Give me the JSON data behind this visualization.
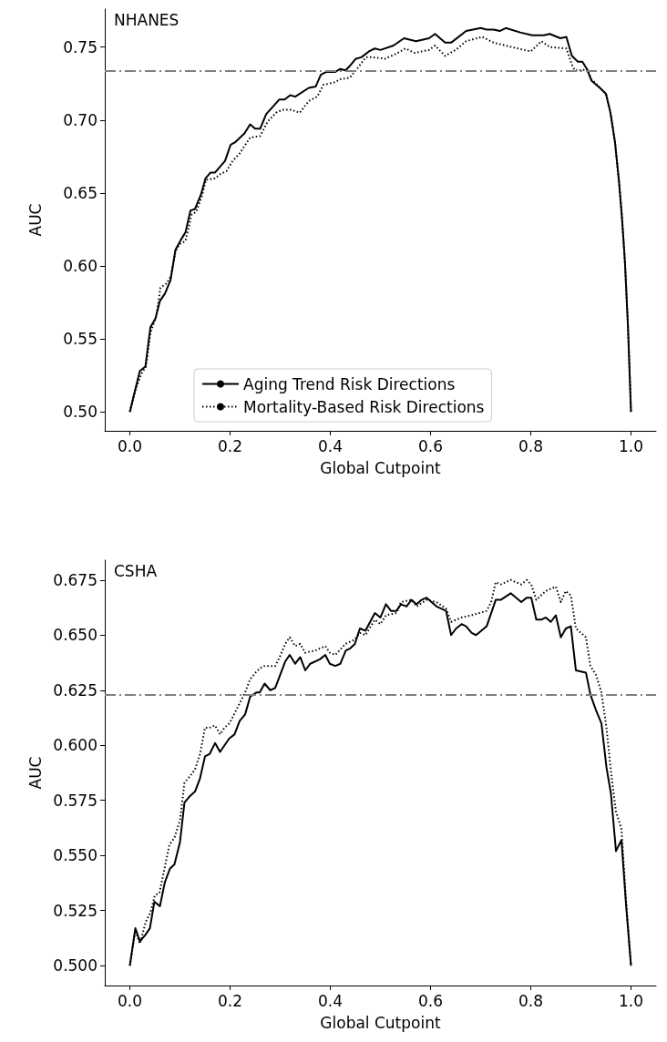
{
  "chart_data": [
    {
      "type": "line",
      "title": "NHANES",
      "xlabel": "Global Cutpoint",
      "ylabel": "AUC",
      "legend": "bottom",
      "grid": false,
      "marker": "none",
      "xlim": [
        -0.05,
        1.05
      ],
      "xticks": [
        {
          "value": 0,
          "label": "0.0"
        },
        {
          "value": 0.2,
          "label": "0.2"
        },
        {
          "value": 0.4,
          "label": "0.4"
        },
        {
          "value": 0.6,
          "label": "0.6"
        },
        {
          "value": 0.8,
          "label": "0.8"
        },
        {
          "value": 1,
          "label": "1.0"
        }
      ],
      "ylim": [
        0.487,
        0.776
      ],
      "yticks": [
        {
          "value": 0.5,
          "label": "0.50"
        },
        {
          "value": 0.55,
          "label": "0.55"
        },
        {
          "value": 0.6,
          "label": "0.60"
        },
        {
          "value": 0.65,
          "label": "0.65"
        },
        {
          "value": 0.7,
          "label": "0.70"
        },
        {
          "value": 0.75,
          "label": "0.75"
        }
      ],
      "ref_lines": [
        {
          "axis": "y",
          "value": 0.734,
          "label": null,
          "color": "#808080",
          "line_style": "dashdot"
        }
      ],
      "series": [
        {
          "name": "Aging Trend Risk Directions",
          "color": "#000000",
          "line_style": "solid",
          "x": [
            0,
            0.012,
            0.02,
            0.031,
            0.041,
            0.051,
            0.06,
            0.07,
            0.081,
            0.091,
            0.102,
            0.111,
            0.121,
            0.13,
            0.142,
            0.151,
            0.161,
            0.17,
            0.19,
            0.201,
            0.211,
            0.229,
            0.24,
            0.25,
            0.26,
            0.272,
            0.298,
            0.309,
            0.32,
            0.33,
            0.357,
            0.371,
            0.381,
            0.392,
            0.41,
            0.42,
            0.43,
            0.439,
            0.451,
            0.462,
            0.477,
            0.489,
            0.5,
            0.526,
            0.547,
            0.571,
            0.597,
            0.609,
            0.629,
            0.641,
            0.671,
            0.7,
            0.712,
            0.726,
            0.738,
            0.75,
            0.779,
            0.803,
            0.815,
            0.826,
            0.838,
            0.859,
            0.871,
            0.882,
            0.894,
            0.903,
            0.912,
            0.921,
            0.938,
            0.95,
            0.959,
            0.968,
            0.976,
            0.982,
            0.988,
            0.994,
            1.0
          ],
          "values": [
            0.5,
            0.517,
            0.528,
            0.531,
            0.558,
            0.564,
            0.576,
            0.581,
            0.59,
            0.611,
            0.618,
            0.623,
            0.638,
            0.639,
            0.649,
            0.66,
            0.664,
            0.664,
            0.672,
            0.683,
            0.685,
            0.691,
            0.697,
            0.694,
            0.694,
            0.704,
            0.714,
            0.714,
            0.717,
            0.716,
            0.722,
            0.723,
            0.731,
            0.733,
            0.733,
            0.735,
            0.734,
            0.737,
            0.742,
            0.743,
            0.747,
            0.749,
            0.748,
            0.751,
            0.756,
            0.754,
            0.756,
            0.759,
            0.753,
            0.753,
            0.761,
            0.763,
            0.762,
            0.762,
            0.761,
            0.763,
            0.76,
            0.758,
            0.758,
            0.758,
            0.759,
            0.756,
            0.757,
            0.744,
            0.74,
            0.74,
            0.735,
            0.727,
            0.722,
            0.718,
            0.705,
            0.685,
            0.658,
            0.633,
            0.602,
            0.558,
            0.5
          ]
        },
        {
          "name": "Mortality-Based Risk Directions",
          "color": "#000000",
          "line_style": "dotted",
          "x": [
            0,
            0.012,
            0.023,
            0.032,
            0.041,
            0.053,
            0.061,
            0.073,
            0.082,
            0.091,
            0.099,
            0.111,
            0.123,
            0.132,
            0.143,
            0.152,
            0.17,
            0.181,
            0.193,
            0.205,
            0.219,
            0.24,
            0.26,
            0.275,
            0.292,
            0.304,
            0.322,
            0.339,
            0.357,
            0.374,
            0.386,
            0.41,
            0.42,
            0.439,
            0.451,
            0.471,
            0.485,
            0.509,
            0.529,
            0.55,
            0.568,
            0.597,
            0.609,
            0.629,
            0.65,
            0.671,
            0.703,
            0.726,
            0.762,
            0.8,
            0.821,
            0.838,
            0.871,
            0.882,
            0.888,
            0.903,
            0.912,
            0.921,
            0.938,
            0.95,
            0.959,
            0.968,
            0.976,
            0.982,
            0.988,
            0.994,
            1.0
          ],
          "values": [
            0.5,
            0.516,
            0.526,
            0.531,
            0.554,
            0.566,
            0.585,
            0.588,
            0.593,
            0.61,
            0.615,
            0.617,
            0.635,
            0.637,
            0.647,
            0.659,
            0.66,
            0.663,
            0.665,
            0.672,
            0.677,
            0.688,
            0.689,
            0.699,
            0.705,
            0.707,
            0.707,
            0.705,
            0.713,
            0.716,
            0.724,
            0.726,
            0.728,
            0.729,
            0.734,
            0.743,
            0.743,
            0.742,
            0.745,
            0.749,
            0.746,
            0.748,
            0.751,
            0.744,
            0.748,
            0.754,
            0.757,
            0.753,
            0.75,
            0.747,
            0.754,
            0.75,
            0.749,
            0.738,
            0.734,
            0.734,
            0.735,
            0.728,
            0.722,
            0.718,
            0.705,
            0.685,
            0.658,
            0.633,
            0.602,
            0.558,
            0.5
          ]
        }
      ]
    },
    {
      "type": "line",
      "title": "CSHA",
      "xlabel": "Global Cutpoint",
      "ylabel": "AUC",
      "legend": false,
      "grid": false,
      "marker": "none",
      "xlim": [
        -0.05,
        1.05
      ],
      "xticks": [
        {
          "value": 0,
          "label": "0.0"
        },
        {
          "value": 0.2,
          "label": "0.2"
        },
        {
          "value": 0.4,
          "label": "0.4"
        },
        {
          "value": 0.6,
          "label": "0.6"
        },
        {
          "value": 0.8,
          "label": "0.8"
        },
        {
          "value": 1,
          "label": "1.0"
        }
      ],
      "ylim": [
        0.491,
        0.684
      ],
      "yticks": [
        {
          "value": 0.5,
          "label": "0.500"
        },
        {
          "value": 0.525,
          "label": "0.525"
        },
        {
          "value": 0.55,
          "label": "0.550"
        },
        {
          "value": 0.575,
          "label": "0.575"
        },
        {
          "value": 0.6,
          "label": "0.600"
        },
        {
          "value": 0.625,
          "label": "0.625"
        },
        {
          "value": 0.65,
          "label": "0.650"
        },
        {
          "value": 0.675,
          "label": "0.675"
        }
      ],
      "ref_lines": [
        {
          "axis": "y",
          "value": 0.623,
          "label": null,
          "color": "#808080",
          "line_style": "dashdot"
        }
      ],
      "series": [
        {
          "color": "#000000",
          "line_style": "solid",
          "x": [
            0,
            0.011,
            0.02,
            0.031,
            0.04,
            0.049,
            0.06,
            0.07,
            0.08,
            0.089,
            0.1,
            0.109,
            0.12,
            0.13,
            0.14,
            0.15,
            0.159,
            0.17,
            0.18,
            0.198,
            0.209,
            0.219,
            0.23,
            0.24,
            0.253,
            0.259,
            0.269,
            0.28,
            0.29,
            0.3,
            0.31,
            0.319,
            0.33,
            0.34,
            0.35,
            0.36,
            0.379,
            0.39,
            0.399,
            0.41,
            0.42,
            0.431,
            0.44,
            0.449,
            0.459,
            0.47,
            0.489,
            0.5,
            0.511,
            0.521,
            0.532,
            0.541,
            0.552,
            0.562,
            0.572,
            0.582,
            0.592,
            0.602,
            0.612,
            0.631,
            0.641,
            0.651,
            0.662,
            0.671,
            0.682,
            0.691,
            0.712,
            0.721,
            0.73,
            0.74,
            0.76,
            0.781,
            0.792,
            0.801,
            0.811,
            0.821,
            0.83,
            0.84,
            0.85,
            0.86,
            0.87,
            0.88,
            0.89,
            0.91,
            0.919,
            0.93,
            0.941,
            0.951,
            0.96,
            0.97,
            0.981,
            0.99,
            1.0
          ],
          "values": [
            0.5,
            0.517,
            0.511,
            0.514,
            0.517,
            0.529,
            0.527,
            0.538,
            0.544,
            0.546,
            0.556,
            0.574,
            0.577,
            0.579,
            0.585,
            0.595,
            0.596,
            0.601,
            0.597,
            0.603,
            0.605,
            0.611,
            0.614,
            0.622,
            0.624,
            0.624,
            0.628,
            0.625,
            0.626,
            0.632,
            0.638,
            0.641,
            0.637,
            0.64,
            0.634,
            0.637,
            0.639,
            0.641,
            0.637,
            0.636,
            0.637,
            0.643,
            0.644,
            0.646,
            0.653,
            0.652,
            0.66,
            0.658,
            0.664,
            0.661,
            0.661,
            0.664,
            0.663,
            0.666,
            0.664,
            0.666,
            0.667,
            0.665,
            0.663,
            0.661,
            0.65,
            0.653,
            0.655,
            0.654,
            0.651,
            0.65,
            0.654,
            0.66,
            0.666,
            0.666,
            0.669,
            0.665,
            0.667,
            0.667,
            0.657,
            0.657,
            0.658,
            0.656,
            0.659,
            0.649,
            0.653,
            0.654,
            0.634,
            0.633,
            0.623,
            0.616,
            0.61,
            0.59,
            0.578,
            0.552,
            0.557,
            0.528,
            0.5
          ]
        },
        {
          "color": "#000000",
          "line_style": "dotted",
          "x": [
            0,
            0.011,
            0.02,
            0.032,
            0.041,
            0.05,
            0.059,
            0.07,
            0.079,
            0.089,
            0.1,
            0.109,
            0.12,
            0.13,
            0.14,
            0.15,
            0.159,
            0.17,
            0.18,
            0.189,
            0.199,
            0.219,
            0.23,
            0.24,
            0.251,
            0.26,
            0.269,
            0.29,
            0.299,
            0.31,
            0.319,
            0.33,
            0.34,
            0.35,
            0.37,
            0.39,
            0.399,
            0.41,
            0.43,
            0.449,
            0.459,
            0.47,
            0.489,
            0.5,
            0.511,
            0.532,
            0.541,
            0.562,
            0.572,
            0.592,
            0.612,
            0.631,
            0.641,
            0.662,
            0.682,
            0.712,
            0.721,
            0.73,
            0.74,
            0.76,
            0.781,
            0.792,
            0.801,
            0.811,
            0.83,
            0.85,
            0.86,
            0.87,
            0.88,
            0.89,
            0.91,
            0.919,
            0.93,
            0.941,
            0.951,
            0.96,
            0.97,
            0.981,
            0.99,
            1.0
          ],
          "values": [
            0.5,
            0.516,
            0.51,
            0.52,
            0.524,
            0.532,
            0.533,
            0.545,
            0.555,
            0.558,
            0.566,
            0.583,
            0.586,
            0.589,
            0.596,
            0.608,
            0.608,
            0.609,
            0.605,
            0.608,
            0.61,
            0.619,
            0.624,
            0.63,
            0.633,
            0.635,
            0.636,
            0.636,
            0.64,
            0.646,
            0.649,
            0.645,
            0.646,
            0.642,
            0.643,
            0.645,
            0.642,
            0.641,
            0.646,
            0.648,
            0.651,
            0.65,
            0.657,
            0.655,
            0.659,
            0.66,
            0.665,
            0.666,
            0.663,
            0.666,
            0.665,
            0.662,
            0.656,
            0.658,
            0.659,
            0.661,
            0.665,
            0.674,
            0.673,
            0.675,
            0.673,
            0.675,
            0.673,
            0.666,
            0.67,
            0.672,
            0.665,
            0.67,
            0.668,
            0.653,
            0.649,
            0.636,
            0.632,
            0.624,
            0.608,
            0.588,
            0.57,
            0.562,
            0.53,
            0.5
          ]
        }
      ]
    }
  ]
}
